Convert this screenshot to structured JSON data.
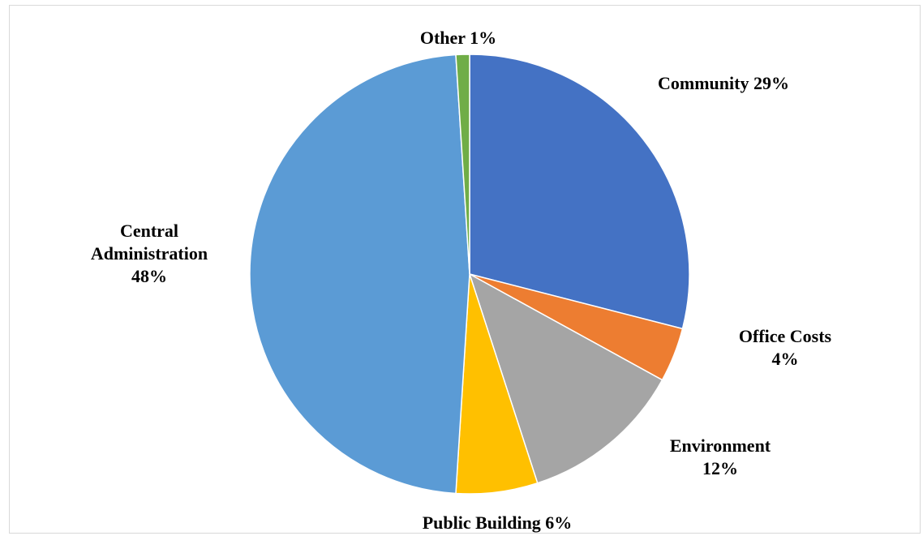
{
  "chart_data": {
    "type": "pie",
    "categories": [
      "Community",
      "Office Costs",
      "Environment",
      "Public Building",
      "Central Administration",
      "Other"
    ],
    "values": [
      29,
      4,
      12,
      6,
      48,
      1
    ],
    "colors": [
      "#4472c4",
      "#ed7d31",
      "#a5a5a5",
      "#ffc000",
      "#5b9bd5",
      "#70ad47"
    ],
    "labels": [
      [
        "Community 29%"
      ],
      [
        "Office Costs",
        "4%"
      ],
      [
        "Environment",
        "12%"
      ],
      [
        "Public Building 6%"
      ],
      [
        "Central",
        "Administration",
        "48%"
      ],
      [
        "Other 1%"
      ]
    ],
    "start_angle": "12 o'clock",
    "direction": "clockwise",
    "legend": "none"
  }
}
